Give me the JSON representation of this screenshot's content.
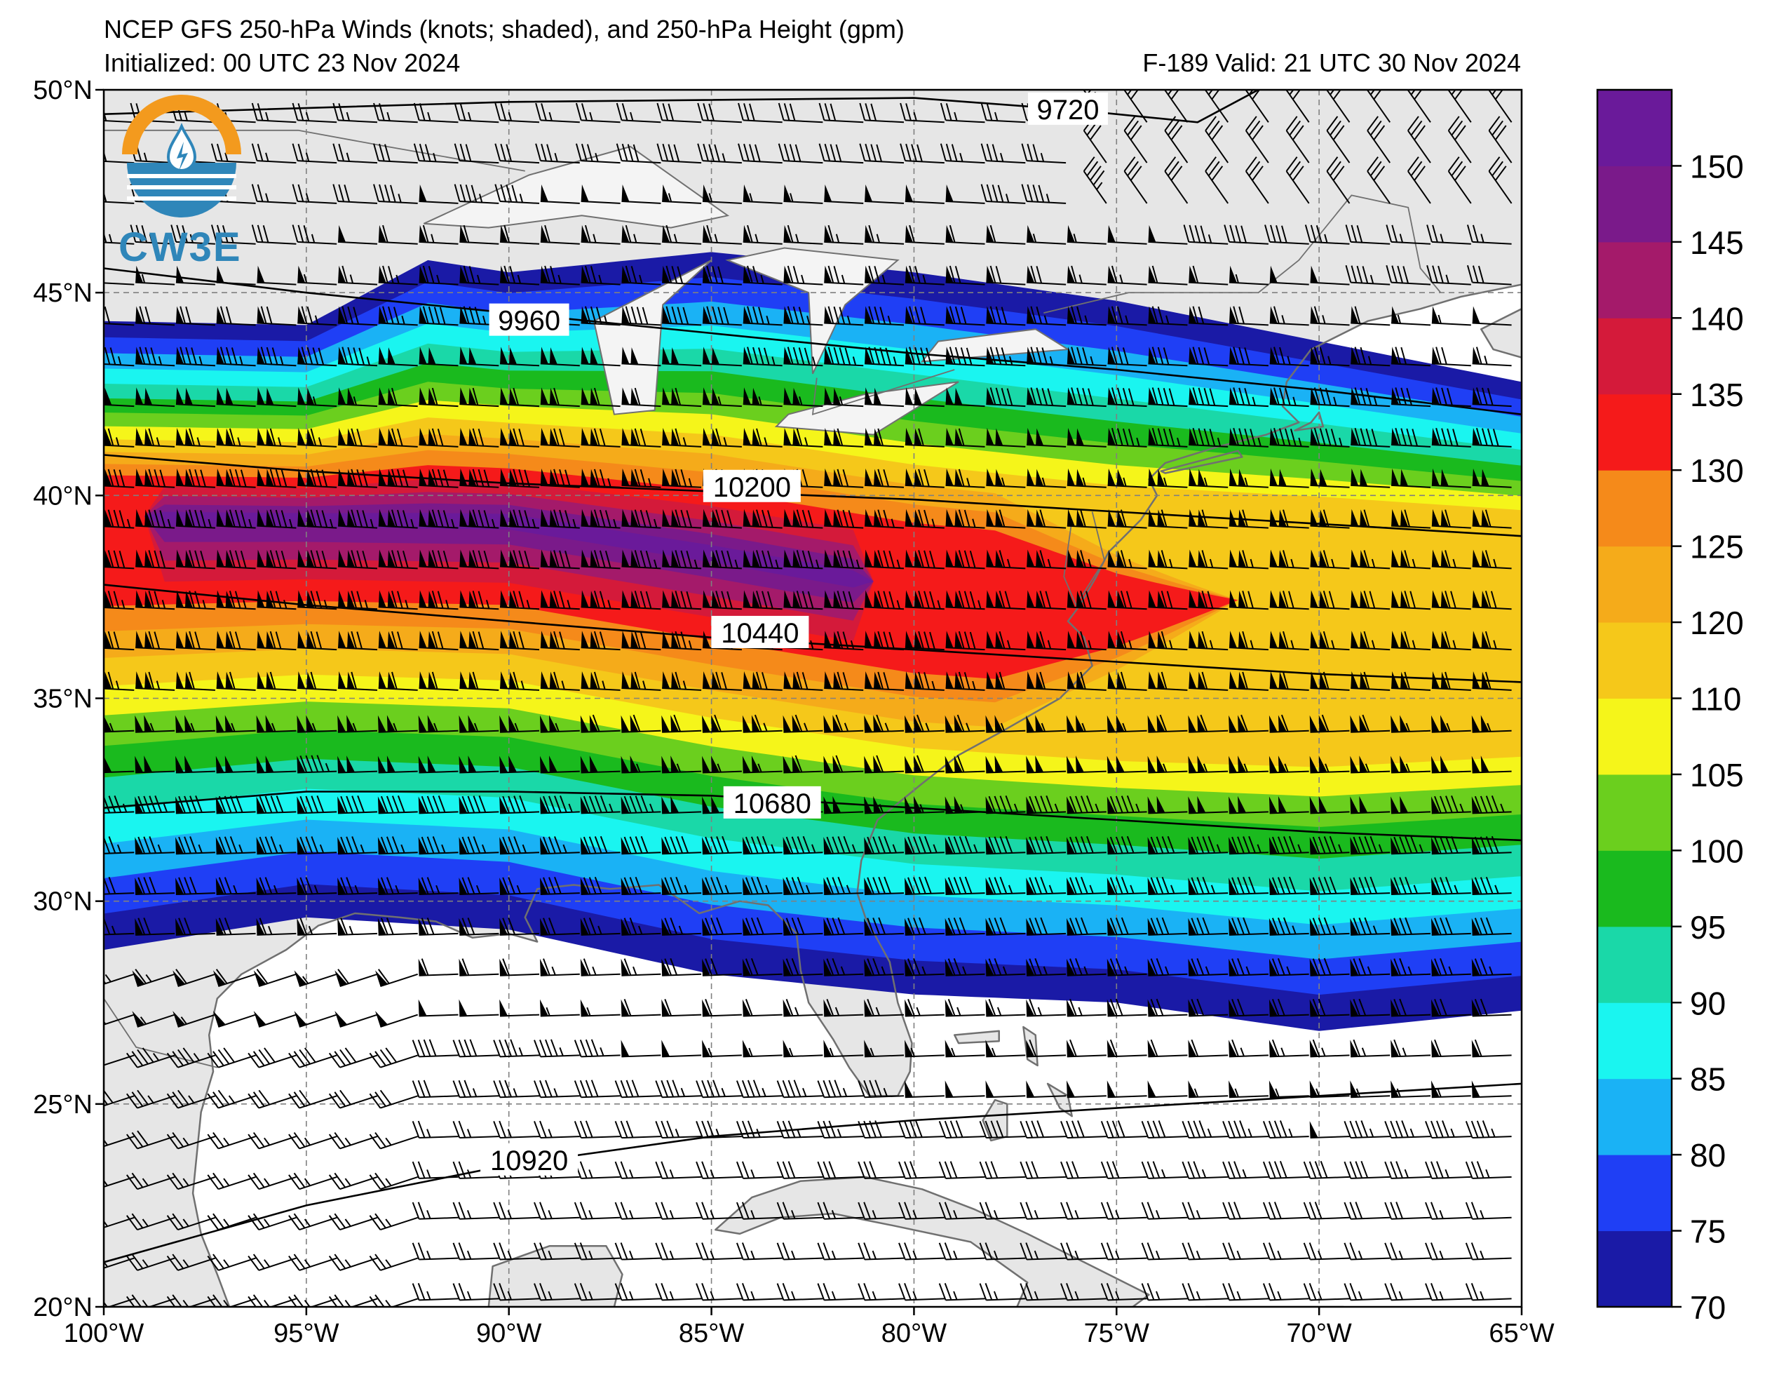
{
  "header": {
    "title": "NCEP GFS 250-hPa Winds (knots; shaded), and 250-hPa Height (gpm)",
    "initialized": "Initialized: 00 UTC 23 Nov 2024",
    "valid": "F-189  Valid: 21 UTC 30 Nov 2024"
  },
  "logo": {
    "text": "CW3E",
    "icon": "cw3e-logo-icon"
  },
  "map": {
    "extent": {
      "lon": [
        -100,
        -65
      ],
      "lat": [
        20,
        50
      ]
    },
    "lat_ticks": [
      {
        "value": 50,
        "label": "50°N"
      },
      {
        "value": 45,
        "label": "45°N"
      },
      {
        "value": 40,
        "label": "40°N"
      },
      {
        "value": 35,
        "label": "35°N"
      },
      {
        "value": 30,
        "label": "30°N"
      },
      {
        "value": 25,
        "label": "25°N"
      },
      {
        "value": 20,
        "label": "20°N"
      }
    ],
    "lon_ticks": [
      {
        "value": -100,
        "label": "100°W"
      },
      {
        "value": -95,
        "label": "95°W"
      },
      {
        "value": -90,
        "label": "90°W"
      },
      {
        "value": -85,
        "label": "85°W"
      },
      {
        "value": -80,
        "label": "80°W"
      },
      {
        "value": -75,
        "label": "75°W"
      },
      {
        "value": -70,
        "label": "70°W"
      },
      {
        "value": -65,
        "label": "65°W"
      }
    ],
    "land_color": "#e6e6e6",
    "coast_color": "#707070",
    "gridline_style": "dashed"
  },
  "jet": {
    "axis_lat_at_lon": [
      {
        "lon": -100,
        "lat": 39.5
      },
      {
        "lon": -90,
        "lat": 39.4
      },
      {
        "lon": -85,
        "lat": 38.6
      },
      {
        "lon": -80,
        "lat": 37.7
      },
      {
        "lon": -75,
        "lat": 37.3
      },
      {
        "lon": -70,
        "lat": 37.5
      },
      {
        "lon": -65,
        "lat": 37.6
      }
    ],
    "north_edge_70kt": [
      {
        "lon": -100,
        "lat": 44.3
      },
      {
        "lon": -95,
        "lat": 44.2
      },
      {
        "lon": -92,
        "lat": 45.8
      },
      {
        "lon": -90,
        "lat": 45.5
      },
      {
        "lon": -85,
        "lat": 46.0
      },
      {
        "lon": -80,
        "lat": 45.5
      },
      {
        "lon": -75,
        "lat": 44.8
      },
      {
        "lon": -70,
        "lat": 43.8
      },
      {
        "lon": -65,
        "lat": 42.8
      }
    ],
    "south_edge_70kt": [
      {
        "lon": -100,
        "lat": 28.8
      },
      {
        "lon": -95,
        "lat": 29.6
      },
      {
        "lon": -90,
        "lat": 29.3
      },
      {
        "lon": -85,
        "lat": 28.2
      },
      {
        "lon": -80,
        "lat": 27.7
      },
      {
        "lon": -75,
        "lat": 27.5
      },
      {
        "lon": -70,
        "lat": 26.8
      },
      {
        "lon": -65,
        "lat": 27.3
      }
    ]
  },
  "height_contours": [
    {
      "label": "9720",
      "lon_label": -76.2,
      "lat_label": 49.5,
      "points": [
        [
          -100,
          49.4
        ],
        [
          -90,
          49.7
        ],
        [
          -80,
          49.8
        ],
        [
          -76,
          49.5
        ],
        [
          -73,
          49.2
        ],
        [
          -71.5,
          50
        ]
      ]
    },
    {
      "label": "9960",
      "lon_label": -89.5,
      "lat_label": 44.3,
      "points": [
        [
          -100,
          45.6
        ],
        [
          -95,
          45.0
        ],
        [
          -90,
          44.5
        ],
        [
          -85,
          44.0
        ],
        [
          -80,
          43.5
        ],
        [
          -75,
          43.1
        ],
        [
          -70,
          42.6
        ],
        [
          -65,
          42.0
        ]
      ]
    },
    {
      "label": "10200",
      "lon_label": -84,
      "lat_label": 40.2,
      "points": [
        [
          -100,
          41.0
        ],
        [
          -95,
          40.6
        ],
        [
          -90,
          40.3
        ],
        [
          -85,
          40.1
        ],
        [
          -80,
          39.9
        ],
        [
          -75,
          39.6
        ],
        [
          -70,
          39.3
        ],
        [
          -65,
          39.0
        ]
      ]
    },
    {
      "label": "10440",
      "lon_label": -83.8,
      "lat_label": 36.6,
      "points": [
        [
          -100,
          37.8
        ],
        [
          -95,
          37.3
        ],
        [
          -90,
          36.9
        ],
        [
          -85,
          36.5
        ],
        [
          -80,
          36.2
        ],
        [
          -75,
          35.9
        ],
        [
          -70,
          35.6
        ],
        [
          -65,
          35.4
        ]
      ]
    },
    {
      "label": "10680",
      "lon_label": -83.5,
      "lat_label": 32.4,
      "points": [
        [
          -100,
          32.3
        ],
        [
          -95,
          32.7
        ],
        [
          -90,
          32.7
        ],
        [
          -85,
          32.6
        ],
        [
          -80,
          32.3
        ],
        [
          -75,
          32.0
        ],
        [
          -70,
          31.7
        ],
        [
          -65,
          31.5
        ]
      ]
    },
    {
      "label": "10920",
      "lon_label": -89.5,
      "lat_label": 23.6,
      "points": [
        [
          -100,
          21.1
        ],
        [
          -95,
          22.5
        ],
        [
          -90,
          23.5
        ],
        [
          -85,
          24.2
        ],
        [
          -80,
          24.6
        ],
        [
          -75,
          24.9
        ],
        [
          -70,
          25.2
        ],
        [
          -65,
          25.5
        ]
      ]
    }
  ],
  "colorbar": {
    "units": "knots",
    "levels": [
      70,
      75,
      80,
      85,
      90,
      95,
      100,
      105,
      110,
      120,
      125,
      130,
      135,
      140,
      145,
      150
    ],
    "labels": [
      "70",
      "75",
      "80",
      "85",
      "90",
      "95",
      "100",
      "105",
      "110",
      "120",
      "125",
      "130",
      "135",
      "140",
      "145",
      "150"
    ],
    "colors": [
      "#1a1aa6",
      "#1f3ff5",
      "#1ab2f5",
      "#1af5f0",
      "#1ad8a8",
      "#1aba1e",
      "#6bcf1e",
      "#f5f51a",
      "#f5c81a",
      "#f5ab1a",
      "#f58a1a",
      "#f51a1a",
      "#d41a3a",
      "#a41a6a",
      "#7a1a8a",
      "#6a1a9a"
    ]
  }
}
